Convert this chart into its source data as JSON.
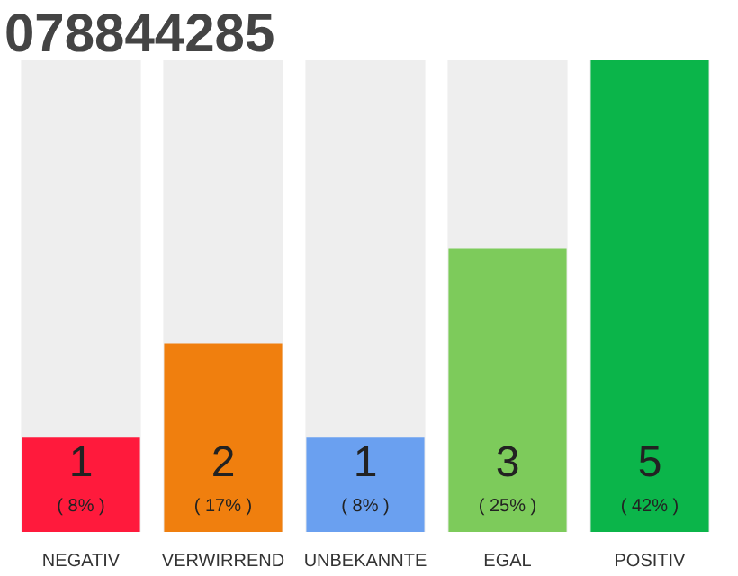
{
  "chart_data": {
    "type": "bar",
    "title": "078844285",
    "categories": [
      "NEGATIV",
      "VERWIRREND",
      "UNBEKANNTE",
      "EGAL",
      "POSITIV"
    ],
    "values": [
      1,
      2,
      1,
      3,
      5
    ],
    "colors": [
      "#ff1a3c",
      "#f07f0e",
      "#6aa0f0",
      "#7dcb5b",
      "#0bb54a"
    ],
    "tick_labels": "x",
    "grid": false,
    "value_labels": [
      "1",
      "2",
      "1",
      "3",
      "5"
    ],
    "annotations": [
      "( 8% )",
      "( 17% )",
      "( 8% )",
      "( 25% )",
      "( 42% )"
    ]
  }
}
